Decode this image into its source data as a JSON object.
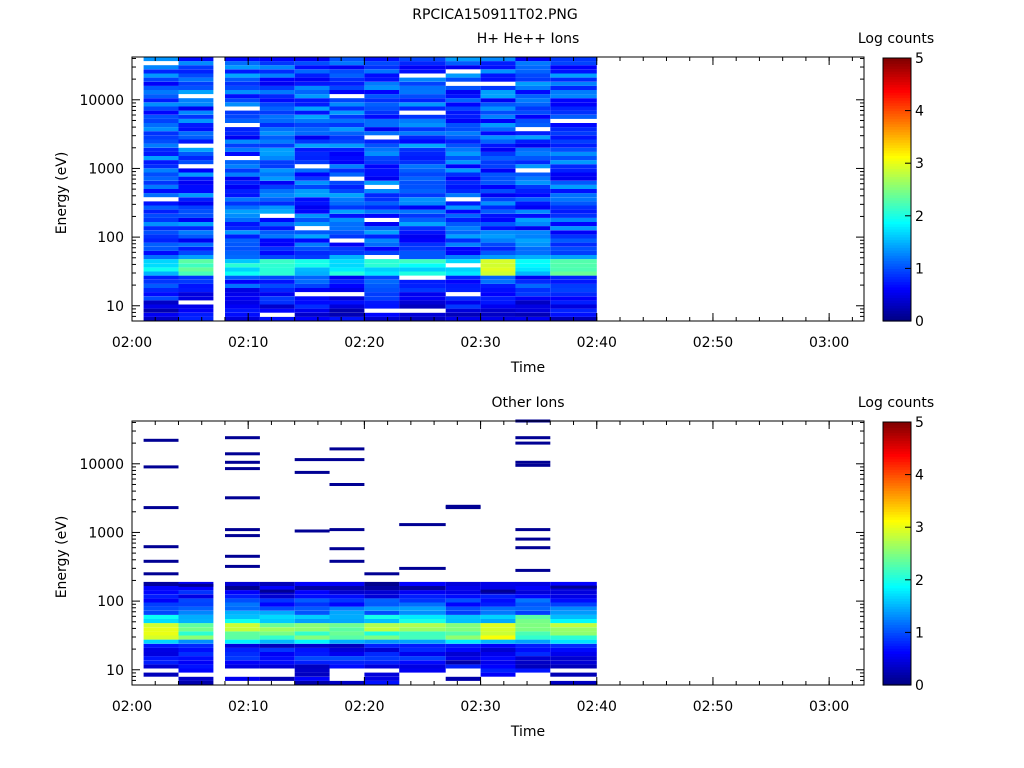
{
  "title": "RPCICA150911T02.PNG",
  "colorbar": {
    "label": "Log counts",
    "ticks": [
      "0",
      "1",
      "2",
      "3",
      "4",
      "5"
    ],
    "range": [
      0,
      5
    ]
  },
  "chart_data": [
    {
      "type": "heatmap",
      "title": "H+ He++ Ions",
      "xlabel": "Time",
      "ylabel": "Energy (eV)",
      "x_ticks": [
        "02:00",
        "02:10",
        "02:20",
        "02:30",
        "02:40",
        "02:50",
        "03:00"
      ],
      "y_ticks": [
        "10",
        "100",
        "1000",
        "10000"
      ],
      "y_scale": "log",
      "ylim": [
        6,
        42000
      ],
      "xlim": [
        "02:00",
        "03:03"
      ],
      "data_end": "02:40",
      "seed": 7,
      "sweeps": [
        {
          "start": "02:01",
          "end": "02:04"
        },
        {
          "start": "02:04",
          "end": "02:07"
        },
        {
          "start": "02:08",
          "end": "02:11"
        },
        {
          "start": "02:11",
          "end": "02:14"
        },
        {
          "start": "02:14",
          "end": "02:17"
        },
        {
          "start": "02:17",
          "end": "02:20"
        },
        {
          "start": "02:20",
          "end": "02:23"
        },
        {
          "start": "02:23",
          "end": "02:27"
        },
        {
          "start": "02:27",
          "end": "02:30"
        },
        {
          "start": "02:30",
          "end": "02:33"
        },
        {
          "start": "02:33",
          "end": "02:36"
        },
        {
          "start": "02:36",
          "end": "02:40"
        }
      ],
      "profile": [
        {
          "e_min": 6,
          "e_max": 9,
          "v": 0.5
        },
        {
          "e_min": 9,
          "e_max": 12,
          "v": 0.6
        },
        {
          "e_min": 12,
          "e_max": 15,
          "v": 0.7
        },
        {
          "e_min": 15,
          "e_max": 19,
          "v": 0.75
        },
        {
          "e_min": 19,
          "e_max": 23,
          "v": 0.9
        },
        {
          "e_min": 23,
          "e_max": 29,
          "v": 0.85
        },
        {
          "e_min": 29,
          "e_max": 36,
          "v": 1.75
        },
        {
          "e_min": 36,
          "e_max": 45,
          "v": 1.9
        },
        {
          "e_min": 45,
          "e_max": 55,
          "v": 1.2
        },
        {
          "e_min": 55,
          "e_max": 70,
          "v": 0.9
        }
      ],
      "highlights": [
        {
          "sweep": 9,
          "e_min": 29,
          "e_max": 45,
          "v": 2.9
        },
        {
          "sweep": 11,
          "e_min": 29,
          "e_max": 45,
          "v": 2.4
        },
        {
          "sweep": 3,
          "e_min": 29,
          "e_max": 45,
          "v": 2.1
        },
        {
          "sweep": 1,
          "e_min": 29,
          "e_max": 45,
          "v": 2.3
        }
      ],
      "background_v": 1.0
    },
    {
      "type": "heatmap",
      "title": "Other Ions",
      "xlabel": "Time",
      "ylabel": "Energy (eV)",
      "x_ticks": [
        "02:00",
        "02:10",
        "02:20",
        "02:30",
        "02:40",
        "02:50",
        "03:00"
      ],
      "y_ticks": [
        "10",
        "100",
        "1000",
        "10000"
      ],
      "y_scale": "log",
      "ylim": [
        6,
        42000
      ],
      "xlim": [
        "02:00",
        "03:03"
      ],
      "data_end": "02:40",
      "seed": 13,
      "sweeps": [
        {
          "start": "02:01",
          "end": "02:04"
        },
        {
          "start": "02:04",
          "end": "02:07"
        },
        {
          "start": "02:08",
          "end": "02:11"
        },
        {
          "start": "02:11",
          "end": "02:14"
        },
        {
          "start": "02:14",
          "end": "02:17"
        },
        {
          "start": "02:17",
          "end": "02:20"
        },
        {
          "start": "02:20",
          "end": "02:23"
        },
        {
          "start": "02:23",
          "end": "02:27"
        },
        {
          "start": "02:27",
          "end": "02:30"
        },
        {
          "start": "02:30",
          "end": "02:33"
        },
        {
          "start": "02:33",
          "end": "02:36"
        },
        {
          "start": "02:36",
          "end": "02:40"
        }
      ],
      "profile": [
        {
          "e_min": 10,
          "e_max": 14,
          "v": 0.5
        },
        {
          "e_min": 14,
          "e_max": 18,
          "v": 0.7
        },
        {
          "e_min": 18,
          "e_max": 24,
          "v": 0.6
        },
        {
          "e_min": 24,
          "e_max": 29,
          "v": 1.6
        },
        {
          "e_min": 29,
          "e_max": 36,
          "v": 2.3
        },
        {
          "e_min": 36,
          "e_max": 45,
          "v": 2.6
        },
        {
          "e_min": 45,
          "e_max": 60,
          "v": 1.7
        },
        {
          "e_min": 60,
          "e_max": 80,
          "v": 1.2
        },
        {
          "e_min": 80,
          "e_max": 110,
          "v": 0.9
        },
        {
          "e_min": 110,
          "e_max": 150,
          "v": 0.6
        },
        {
          "e_min": 150,
          "e_max": 200,
          "v": 0.35
        }
      ],
      "highlights": [
        {
          "sweep": 0,
          "e_min": 29,
          "e_max": 45,
          "v": 3.0
        },
        {
          "sweep": 9,
          "e_min": 29,
          "e_max": 45,
          "v": 3.0
        },
        {
          "sweep": 10,
          "e_min": 36,
          "e_max": 60,
          "v": 2.4
        }
      ],
      "lines": [
        {
          "sweep": 0,
          "e": 22000
        },
        {
          "sweep": 0,
          "e": 9000
        },
        {
          "sweep": 0,
          "e": 2300
        },
        {
          "sweep": 0,
          "e": 620
        },
        {
          "sweep": 0,
          "e": 380
        },
        {
          "sweep": 0,
          "e": 250
        },
        {
          "sweep": 1,
          "e": 170
        },
        {
          "sweep": 2,
          "e": 24000
        },
        {
          "sweep": 2,
          "e": 14000
        },
        {
          "sweep": 2,
          "e": 10500
        },
        {
          "sweep": 2,
          "e": 8500
        },
        {
          "sweep": 2,
          "e": 3200
        },
        {
          "sweep": 2,
          "e": 1100
        },
        {
          "sweep": 2,
          "e": 900
        },
        {
          "sweep": 2,
          "e": 450
        },
        {
          "sweep": 2,
          "e": 320
        },
        {
          "sweep": 3,
          "e": 140
        },
        {
          "sweep": 4,
          "e": 11500
        },
        {
          "sweep": 4,
          "e": 7500
        },
        {
          "sweep": 4,
          "e": 1050
        },
        {
          "sweep": 5,
          "e": 16500
        },
        {
          "sweep": 5,
          "e": 11500
        },
        {
          "sweep": 5,
          "e": 5000
        },
        {
          "sweep": 5,
          "e": 1100
        },
        {
          "sweep": 5,
          "e": 580
        },
        {
          "sweep": 5,
          "e": 380
        },
        {
          "sweep": 6,
          "e": 250
        },
        {
          "sweep": 7,
          "e": 1300
        },
        {
          "sweep": 7,
          "e": 300
        },
        {
          "sweep": 8,
          "e": 2400
        },
        {
          "sweep": 8,
          "e": 2300
        },
        {
          "sweep": 9,
          "e": 140
        },
        {
          "sweep": 10,
          "e": 42000
        },
        {
          "sweep": 10,
          "e": 24000
        },
        {
          "sweep": 10,
          "e": 20000
        },
        {
          "sweep": 10,
          "e": 10500
        },
        {
          "sweep": 10,
          "e": 9500
        },
        {
          "sweep": 10,
          "e": 1100
        },
        {
          "sweep": 10,
          "e": 800
        },
        {
          "sweep": 10,
          "e": 600
        },
        {
          "sweep": 10,
          "e": 280
        },
        {
          "sweep": 11,
          "e": 160
        }
      ],
      "top_energy": 200,
      "background_v": 0.0
    }
  ]
}
